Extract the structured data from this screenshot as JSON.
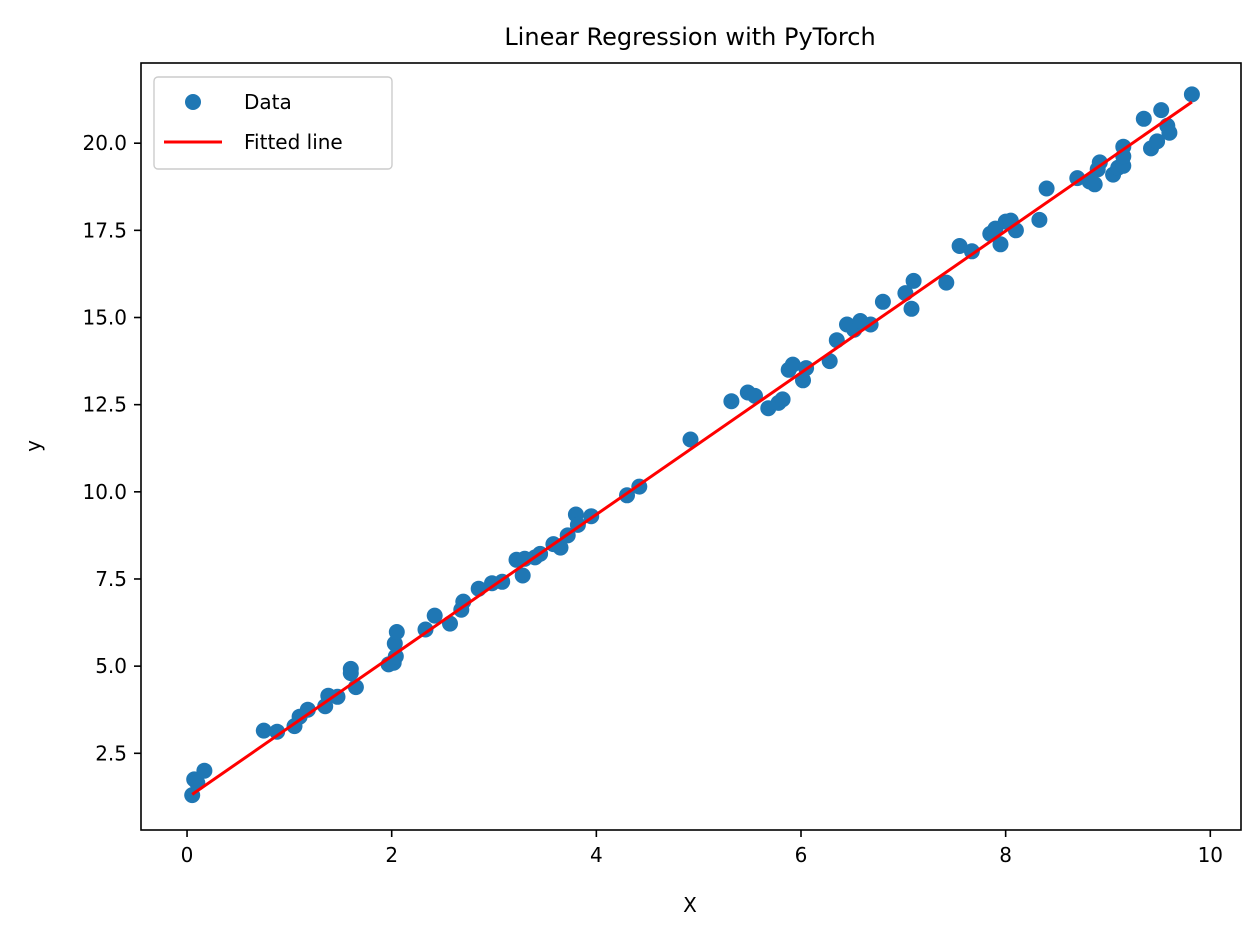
{
  "chart_data": {
    "type": "scatter",
    "title": "Linear Regression with PyTorch",
    "xlabel": "X",
    "ylabel": "y",
    "xlim": [
      -0.45,
      10.3
    ],
    "ylim": [
      0.3,
      22.3
    ],
    "xticks": [
      0,
      2,
      4,
      6,
      8,
      10
    ],
    "yticks": [
      2.5,
      5.0,
      7.5,
      10.0,
      12.5,
      15.0,
      17.5,
      20.0
    ],
    "xtick_labels": [
      "0",
      "2",
      "4",
      "6",
      "8",
      "10"
    ],
    "ytick_labels": [
      "2.5",
      "5.0",
      "7.5",
      "10.0",
      "12.5",
      "15.0",
      "17.5",
      "20.0"
    ],
    "grid": false,
    "legend": {
      "placement": "top-left",
      "entries": [
        {
          "label": "Data",
          "kind": "marker",
          "color": "#1f77b4"
        },
        {
          "label": "Fitted line",
          "kind": "line",
          "color": "#ff0000"
        }
      ]
    },
    "series": [
      {
        "name": "Data",
        "kind": "scatter",
        "color": "#1f77b4",
        "x": [
          0.05,
          0.07,
          0.1,
          0.17,
          0.75,
          0.88,
          1.05,
          1.1,
          1.18,
          1.35,
          1.38,
          1.47,
          1.6,
          1.6,
          1.65,
          1.97,
          2.02,
          2.03,
          2.04,
          2.05,
          2.33,
          2.42,
          2.57,
          2.68,
          2.7,
          2.85,
          2.98,
          3.08,
          3.22,
          3.28,
          3.3,
          3.4,
          3.45,
          3.58,
          3.65,
          3.72,
          3.8,
          3.82,
          3.95,
          4.3,
          4.42,
          4.92,
          5.32,
          5.48,
          5.55,
          5.68,
          5.78,
          5.82,
          5.88,
          5.92,
          6.02,
          6.05,
          6.28,
          6.35,
          6.45,
          6.52,
          6.58,
          6.68,
          6.8,
          7.02,
          7.08,
          7.1,
          7.42,
          7.55,
          7.67,
          7.85,
          7.9,
          7.95,
          8.0,
          8.05,
          8.1,
          8.33,
          8.4,
          8.7,
          8.82,
          8.87,
          8.9,
          8.92,
          9.05,
          9.1,
          9.15,
          9.15,
          9.15,
          9.35,
          9.42,
          9.48,
          9.52,
          9.58,
          9.6,
          9.82
        ],
        "y": [
          1.3,
          1.75,
          1.65,
          2.0,
          3.15,
          3.12,
          3.28,
          3.55,
          3.75,
          3.85,
          4.15,
          4.12,
          4.8,
          4.92,
          4.4,
          5.05,
          5.1,
          5.65,
          5.28,
          5.98,
          6.05,
          6.45,
          6.22,
          6.62,
          6.85,
          7.22,
          7.38,
          7.42,
          8.05,
          7.6,
          8.08,
          8.12,
          8.22,
          8.5,
          8.4,
          8.75,
          9.35,
          9.05,
          9.3,
          9.9,
          10.15,
          11.5,
          12.6,
          12.85,
          12.75,
          12.4,
          12.55,
          12.65,
          13.5,
          13.65,
          13.2,
          13.55,
          13.75,
          14.35,
          14.8,
          14.65,
          14.9,
          14.8,
          15.45,
          15.7,
          15.25,
          16.05,
          16.0,
          17.05,
          16.9,
          17.4,
          17.55,
          17.1,
          17.75,
          17.78,
          17.5,
          17.8,
          18.7,
          19.0,
          18.9,
          18.82,
          19.25,
          19.45,
          19.1,
          19.3,
          19.35,
          19.62,
          19.9,
          20.7,
          19.85,
          20.05,
          20.95,
          20.5,
          20.3,
          21.4
        ]
      },
      {
        "name": "Fitted line",
        "kind": "line",
        "color": "#ff0000",
        "x": [
          0.05,
          9.82
        ],
        "y": [
          1.32,
          21.18
        ]
      }
    ]
  }
}
